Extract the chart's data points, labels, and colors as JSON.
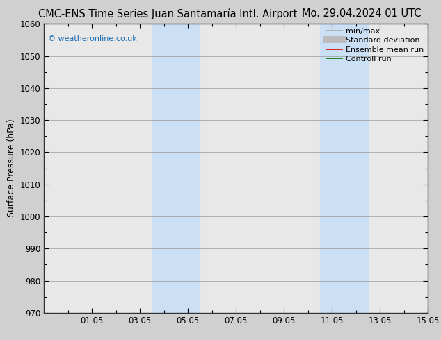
{
  "title_left": "CMC-ENS Time Series Juan Santamaría Intl. Airport",
  "title_right": "Mo. 29.04.2024 01 UTC",
  "ylabel": "Surface Pressure (hPa)",
  "ylim": [
    970,
    1060
  ],
  "yticks": [
    970,
    980,
    990,
    1000,
    1010,
    1020,
    1030,
    1040,
    1050,
    1060
  ],
  "xlim": [
    0,
    16
  ],
  "xtick_labels": [
    "01.05",
    "03.05",
    "05.05",
    "07.05",
    "09.05",
    "11.05",
    "13.05",
    "15.05"
  ],
  "xtick_positions": [
    2,
    4,
    6,
    8,
    10,
    12,
    14,
    16
  ],
  "shaded_bands": [
    {
      "x_start": 4.5,
      "x_end": 6.5
    },
    {
      "x_start": 11.5,
      "x_end": 13.5
    }
  ],
  "watermark": "© weatheronline.co.uk",
  "watermark_color": "#1a6eb5",
  "background_color": "#d0d0d0",
  "plot_bg_color": "#e8e8e8",
  "shade_color": "#cce0f5",
  "grid_color": "#999999",
  "legend_entries": [
    {
      "label": "min/max",
      "color": "#aaaaaa",
      "lw": 1.2,
      "ls": "-"
    },
    {
      "label": "Standard deviation",
      "color": "#bbbbbb",
      "lw": 7,
      "ls": "-"
    },
    {
      "label": "Ensemble mean run",
      "color": "#dd0000",
      "lw": 1.2,
      "ls": "-"
    },
    {
      "label": "Controll run",
      "color": "#007700",
      "lw": 1.2,
      "ls": "-"
    }
  ],
  "title_fontsize": 10.5,
  "axis_fontsize": 9,
  "tick_fontsize": 8.5,
  "legend_fontsize": 8
}
